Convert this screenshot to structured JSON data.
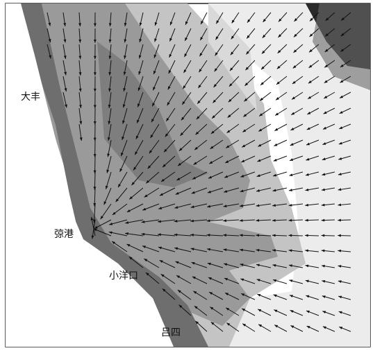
{
  "places": [
    {
      "label": "大丰"
    },
    {
      "label": "弶港"
    },
    {
      "label": "小洋口"
    },
    {
      "label": "吕四"
    }
  ]
}
